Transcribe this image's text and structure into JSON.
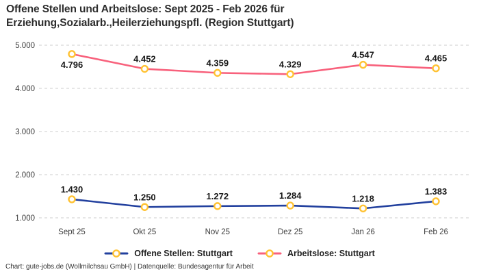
{
  "header": {
    "title": "Offene Stellen und Arbeitslose: Sept 2025 - Feb 2026 für\nErziehung,Sozialarb.,Heilerziehungspfl. (Region Stuttgart)"
  },
  "footer": {
    "attribution": "Chart: gute-jobs.de (Wollmilchsau GmbH) | Datenquelle: Bundesagentur für Arbeit"
  },
  "chart_data": {
    "type": "line",
    "title": "Offene Stellen und Arbeitslose: Sept 2025 - Feb 2026 für Erziehung,Sozialarb.,Heilerziehungspfl. (Region Stuttgart)",
    "categories": [
      "Sept 25",
      "Okt 25",
      "Nov 25",
      "Dez 25",
      "Jan 26",
      "Feb 26"
    ],
    "series": [
      {
        "name": "Offene Stellen: Stuttgart",
        "id": "offene-stellen",
        "color": "#22409E",
        "values": [
          1430,
          1250,
          1272,
          1284,
          1218,
          1383
        ],
        "labels": [
          "1.430",
          "1.250",
          "1.272",
          "1.284",
          "1.218",
          "1.383"
        ]
      },
      {
        "name": "Arbeitslose: Stuttgart",
        "id": "arbeitslose",
        "color": "#F8617C",
        "values": [
          4796,
          4452,
          4359,
          4329,
          4547,
          4465
        ],
        "labels": [
          "4.796",
          "4.452",
          "4.359",
          "4.329",
          "4.547",
          "4.465"
        ]
      }
    ],
    "xlabel": "",
    "ylabel": "",
    "ylim": [
      1000,
      5000
    ],
    "yticks": [
      1000,
      2000,
      3000,
      4000,
      5000
    ],
    "ytick_labels": [
      "1.000",
      "2.000",
      "3.000",
      "4.000",
      "5.000"
    ],
    "grid": "dashed-horizontal",
    "gridline_color": "#CDCDCD",
    "legend_position": "bottom",
    "marker": {
      "shape": "circle",
      "fill": "#FFFFFF",
      "stroke": "#FFC233"
    }
  }
}
